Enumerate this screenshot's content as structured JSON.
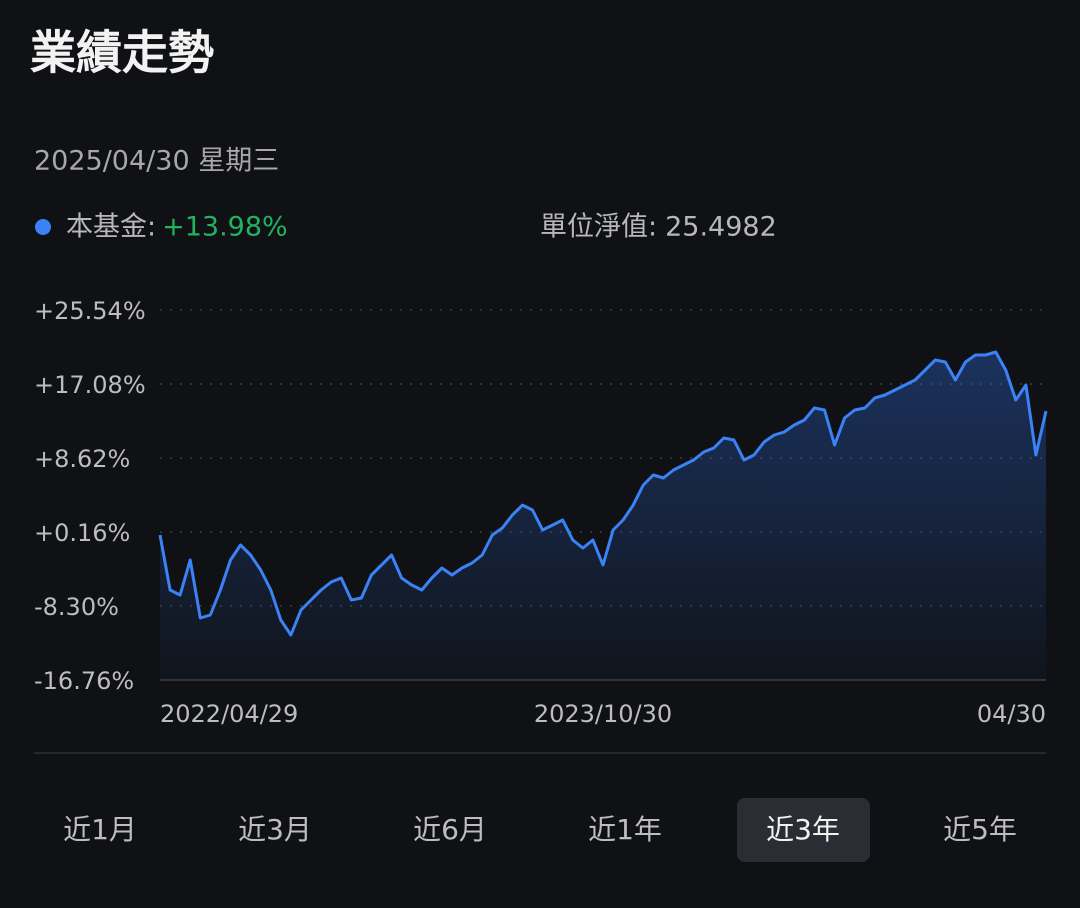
{
  "header": {
    "title": "業績走勢",
    "date": "2025/04/30 星期三"
  },
  "summary": {
    "change": "+13.98%",
    "nav_label": "單位淨值:",
    "nav": "25.4982"
  },
  "chart_data": {
    "type": "line",
    "categories": [
      "2022/04/29",
      null,
      null,
      null,
      null,
      null,
      null,
      null,
      null,
      null,
      null,
      null,
      null,
      null,
      null,
      null,
      null,
      null,
      null,
      null,
      null,
      null,
      null,
      null,
      null,
      null,
      null,
      null,
      null,
      null,
      null,
      null,
      null,
      null,
      null,
      null,
      null,
      null,
      null,
      null,
      null,
      null,
      null,
      null,
      "2023/10/30",
      null,
      null,
      null,
      null,
      null,
      null,
      null,
      null,
      null,
      null,
      null,
      null,
      null,
      null,
      null,
      null,
      null,
      null,
      null,
      null,
      null,
      null,
      null,
      null,
      null,
      null,
      null,
      null,
      null,
      null,
      null,
      null,
      null,
      null,
      null,
      null,
      null,
      null,
      null,
      null,
      null,
      null,
      null,
      "04/30"
    ],
    "series": [
      {
        "name": "本基金:",
        "color": "#3b82f6",
        "values": [
          -0.18,
          -6.47,
          -7.04,
          -3.04,
          -9.67,
          -9.33,
          -6.47,
          -3.04,
          -1.33,
          -2.47,
          -4.18,
          -6.47,
          -9.9,
          -11.61,
          -8.76,
          -7.61,
          -6.47,
          -5.56,
          -5.1,
          -7.61,
          -7.39,
          -4.76,
          -3.61,
          -2.47,
          -5.1,
          -5.9,
          -6.47,
          -5.1,
          -3.96,
          -4.76,
          -3.96,
          -3.38,
          -2.47,
          -0.18,
          0.62,
          2.1,
          3.24,
          2.68,
          0.39,
          0.96,
          1.53,
          -0.75,
          -1.67,
          -0.75,
          -3.61,
          0.39,
          1.53,
          3.24,
          5.53,
          6.68,
          6.33,
          7.25,
          7.82,
          8.39,
          9.31,
          9.76,
          10.91,
          10.68,
          8.39,
          8.96,
          10.45,
          11.25,
          11.59,
          12.39,
          12.96,
          14.34,
          14.11,
          10.11,
          13.19,
          14.11,
          14.34,
          15.48,
          15.82,
          16.39,
          16.97,
          17.54,
          18.68,
          19.82,
          19.59,
          17.54,
          19.59,
          20.39,
          20.39,
          20.74,
          18.68,
          15.25,
          16.97,
          8.96,
          13.98
        ]
      }
    ],
    "ylim": [
      -16.76,
      25.54
    ],
    "yticks": [
      {
        "value": 25.54,
        "label": "+25.54%"
      },
      {
        "value": 17.08,
        "label": "+17.08%"
      },
      {
        "value": 8.62,
        "label": "+8.62%"
      },
      {
        "value": 0.16,
        "label": "+0.16%"
      },
      {
        "value": -8.3,
        "label": "-8.30%"
      },
      {
        "value": -16.76,
        "label": "-16.76%"
      }
    ],
    "grid": true
  },
  "tabs": {
    "items": [
      "近1月",
      "近3月",
      "近6月",
      "近1年",
      "近3年",
      "近5年"
    ],
    "selected": 4
  }
}
